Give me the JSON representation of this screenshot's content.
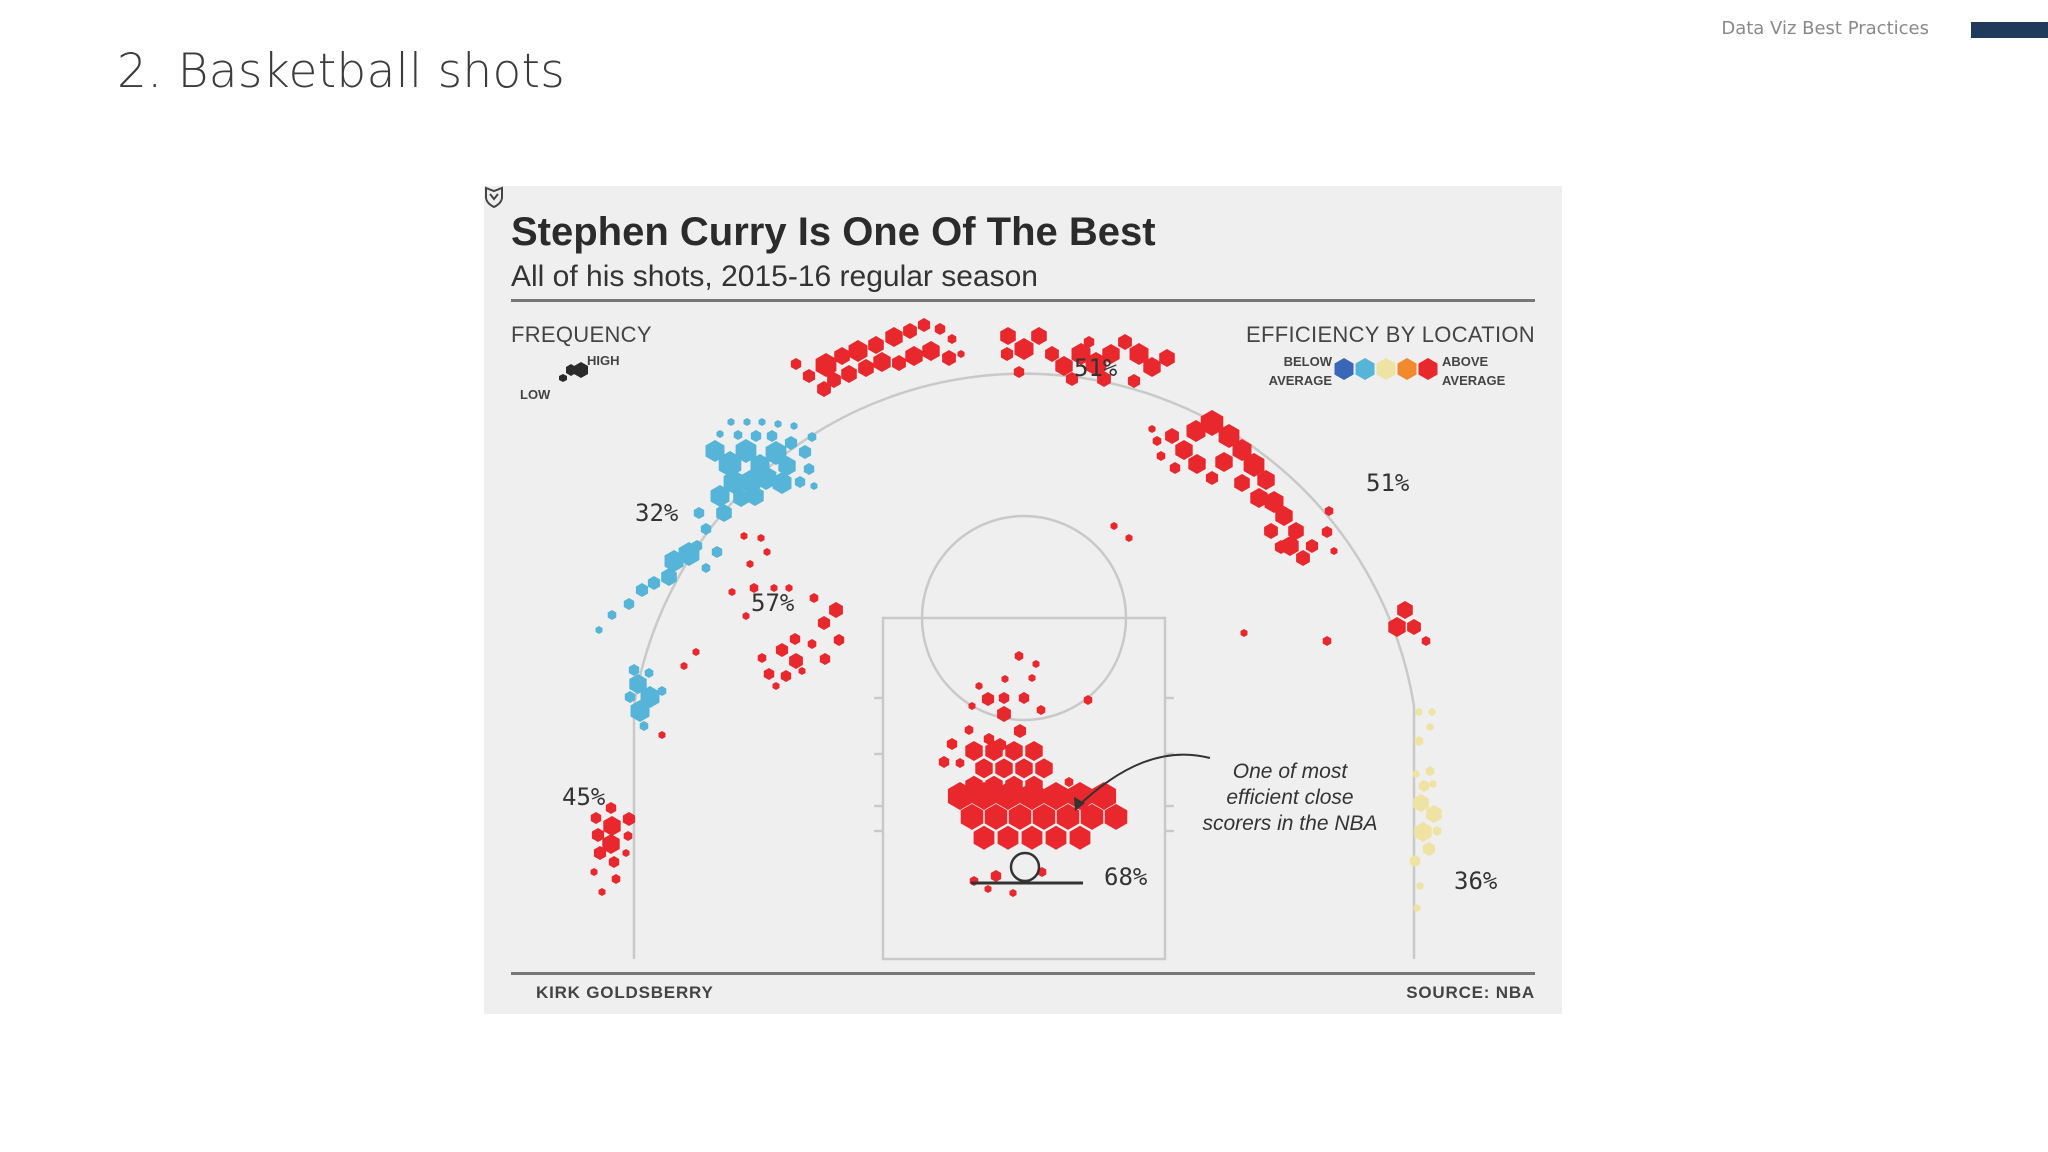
{
  "header": {
    "slide_title": "2. Basketball shots",
    "deck_label": "Data Viz Best Practices",
    "accent_color": "#1f3a5a"
  },
  "figure": {
    "title": "Stephen Curry Is One Of The Best",
    "subtitle": "All of his shots, 2015-16 regular season",
    "frequency_legend": {
      "heading": "FREQUENCY",
      "high": "HIGH",
      "low": "LOW"
    },
    "efficiency_legend": {
      "heading": "EFFICIENCY BY LOCATION",
      "below_1": "BELOW",
      "below_2": "AVERAGE",
      "above_1": "ABOVE",
      "above_2": "AVERAGE",
      "colors": [
        "#3a66b8",
        "#55b4d8",
        "#efe3a3",
        "#f08a2c",
        "#e8282c"
      ]
    },
    "annotation": {
      "line1": "One of most",
      "line2": "efficient close",
      "line3": "scorers in the NBA"
    },
    "footer": {
      "credit": "KIRK GOLDSBERRY",
      "source": "SOURCE: NBA"
    }
  },
  "chart_data": {
    "type": "heatmap",
    "title": "Stephen Curry Is One Of The Best",
    "subtitle": "All of his shots, 2015-16 regular season",
    "zones": [
      {
        "label": "51%",
        "efficiency": "above average"
      },
      {
        "label": "51%",
        "efficiency": "above average"
      },
      {
        "label": "32%",
        "efficiency": "below average"
      },
      {
        "label": "57%",
        "efficiency": "above average"
      },
      {
        "label": "45%",
        "efficiency": "above average"
      },
      {
        "label": "68%",
        "efficiency": "above average"
      },
      {
        "label": "36%",
        "efficiency": "average"
      }
    ]
  }
}
